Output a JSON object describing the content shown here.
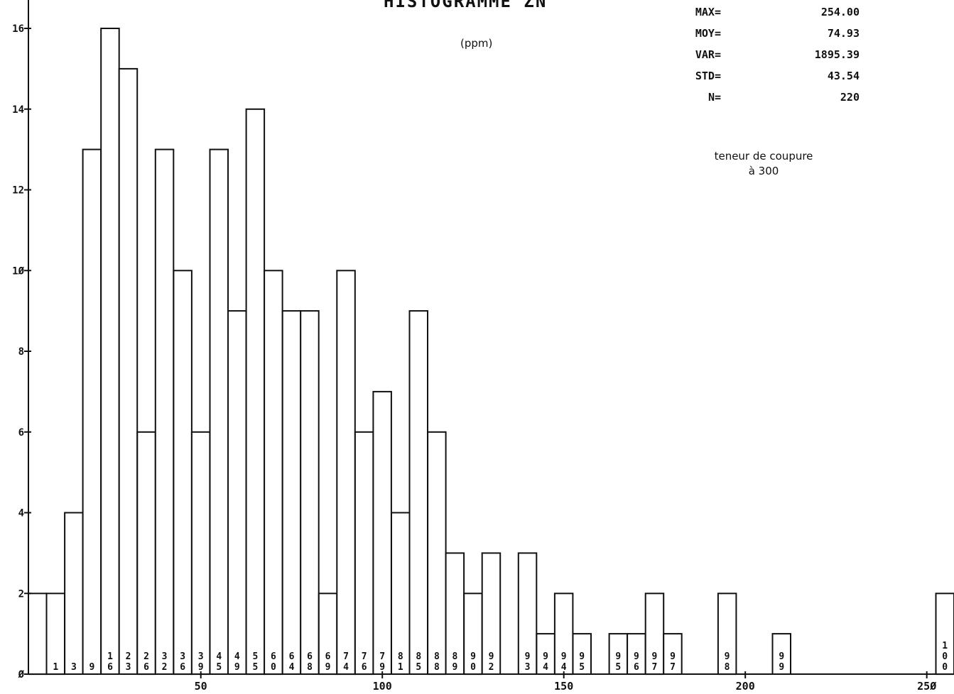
{
  "title": "HISTOGRAMME ZN",
  "unit": "(ppm)",
  "stats": [
    {
      "label": "MAX=",
      "value": "254.00"
    },
    {
      "label": "MOY=",
      "value": "74.93"
    },
    {
      "label": "VAR=",
      "value": "1895.39"
    },
    {
      "label": "STD=",
      "value": "43.54"
    },
    {
      "label": "N=",
      "value": "220"
    }
  ],
  "note": {
    "line1": "teneur de coupure",
    "line2": "à 300"
  },
  "chart_data": {
    "type": "bar",
    "title": "HISTOGRAMME ZN",
    "xlabel": "",
    "ylabel": "",
    "bin_width": 5,
    "xlim": [
      2.5,
      257.5
    ],
    "ylim": [
      0,
      17
    ],
    "x_ticks": [
      50,
      100,
      150,
      200,
      250
    ],
    "x_tick_labels": [
      "50",
      "100",
      "150",
      "200",
      "25Ø"
    ],
    "y_ticks": [
      0,
      2,
      4,
      6,
      8,
      10,
      12,
      14,
      16
    ],
    "y_tick_labels": [
      "Ø",
      "2",
      "4",
      "6",
      "8",
      "1Ø",
      "12",
      "14",
      "16"
    ],
    "bins": [
      {
        "x": 5,
        "count": 2,
        "cum": ""
      },
      {
        "x": 10,
        "count": 2,
        "cum": "1"
      },
      {
        "x": 15,
        "count": 4,
        "cum": "3"
      },
      {
        "x": 20,
        "count": 13,
        "cum": "9"
      },
      {
        "x": 25,
        "count": 16,
        "cum": "16"
      },
      {
        "x": 30,
        "count": 15,
        "cum": "23"
      },
      {
        "x": 35,
        "count": 6,
        "cum": "26"
      },
      {
        "x": 40,
        "count": 13,
        "cum": "32"
      },
      {
        "x": 45,
        "count": 10,
        "cum": "36"
      },
      {
        "x": 50,
        "count": 6,
        "cum": "39"
      },
      {
        "x": 55,
        "count": 13,
        "cum": "45"
      },
      {
        "x": 60,
        "count": 9,
        "cum": "49"
      },
      {
        "x": 65,
        "count": 14,
        "cum": "55"
      },
      {
        "x": 70,
        "count": 10,
        "cum": "60"
      },
      {
        "x": 75,
        "count": 9,
        "cum": "64"
      },
      {
        "x": 80,
        "count": 9,
        "cum": "68"
      },
      {
        "x": 85,
        "count": 2,
        "cum": "69"
      },
      {
        "x": 90,
        "count": 10,
        "cum": "74"
      },
      {
        "x": 95,
        "count": 6,
        "cum": "76"
      },
      {
        "x": 100,
        "count": 7,
        "cum": "79"
      },
      {
        "x": 105,
        "count": 4,
        "cum": "81"
      },
      {
        "x": 110,
        "count": 9,
        "cum": "85"
      },
      {
        "x": 115,
        "count": 6,
        "cum": "88"
      },
      {
        "x": 120,
        "count": 3,
        "cum": "89"
      },
      {
        "x": 125,
        "count": 2,
        "cum": "90"
      },
      {
        "x": 130,
        "count": 3,
        "cum": "92"
      },
      {
        "x": 135,
        "count": 0,
        "cum": ""
      },
      {
        "x": 140,
        "count": 3,
        "cum": "93"
      },
      {
        "x": 145,
        "count": 1,
        "cum": "94"
      },
      {
        "x": 150,
        "count": 2,
        "cum": "94"
      },
      {
        "x": 155,
        "count": 1,
        "cum": "95"
      },
      {
        "x": 160,
        "count": 0,
        "cum": ""
      },
      {
        "x": 165,
        "count": 1,
        "cum": "95"
      },
      {
        "x": 170,
        "count": 1,
        "cum": "96"
      },
      {
        "x": 175,
        "count": 2,
        "cum": "97"
      },
      {
        "x": 180,
        "count": 1,
        "cum": "97"
      },
      {
        "x": 185,
        "count": 0,
        "cum": ""
      },
      {
        "x": 190,
        "count": 0,
        "cum": ""
      },
      {
        "x": 195,
        "count": 2,
        "cum": "98"
      },
      {
        "x": 200,
        "count": 0,
        "cum": ""
      },
      {
        "x": 205,
        "count": 0,
        "cum": ""
      },
      {
        "x": 210,
        "count": 1,
        "cum": "99"
      },
      {
        "x": 215,
        "count": 0,
        "cum": ""
      },
      {
        "x": 220,
        "count": 0,
        "cum": ""
      },
      {
        "x": 225,
        "count": 0,
        "cum": ""
      },
      {
        "x": 230,
        "count": 0,
        "cum": ""
      },
      {
        "x": 235,
        "count": 0,
        "cum": ""
      },
      {
        "x": 240,
        "count": 0,
        "cum": ""
      },
      {
        "x": 245,
        "count": 0,
        "cum": ""
      },
      {
        "x": 250,
        "count": 0,
        "cum": ""
      },
      {
        "x": 255,
        "count": 2,
        "cum": "100"
      }
    ],
    "colors": {
      "bar_fill": "#ffffff",
      "bar_stroke": "#111111",
      "axis": "#111111"
    }
  }
}
